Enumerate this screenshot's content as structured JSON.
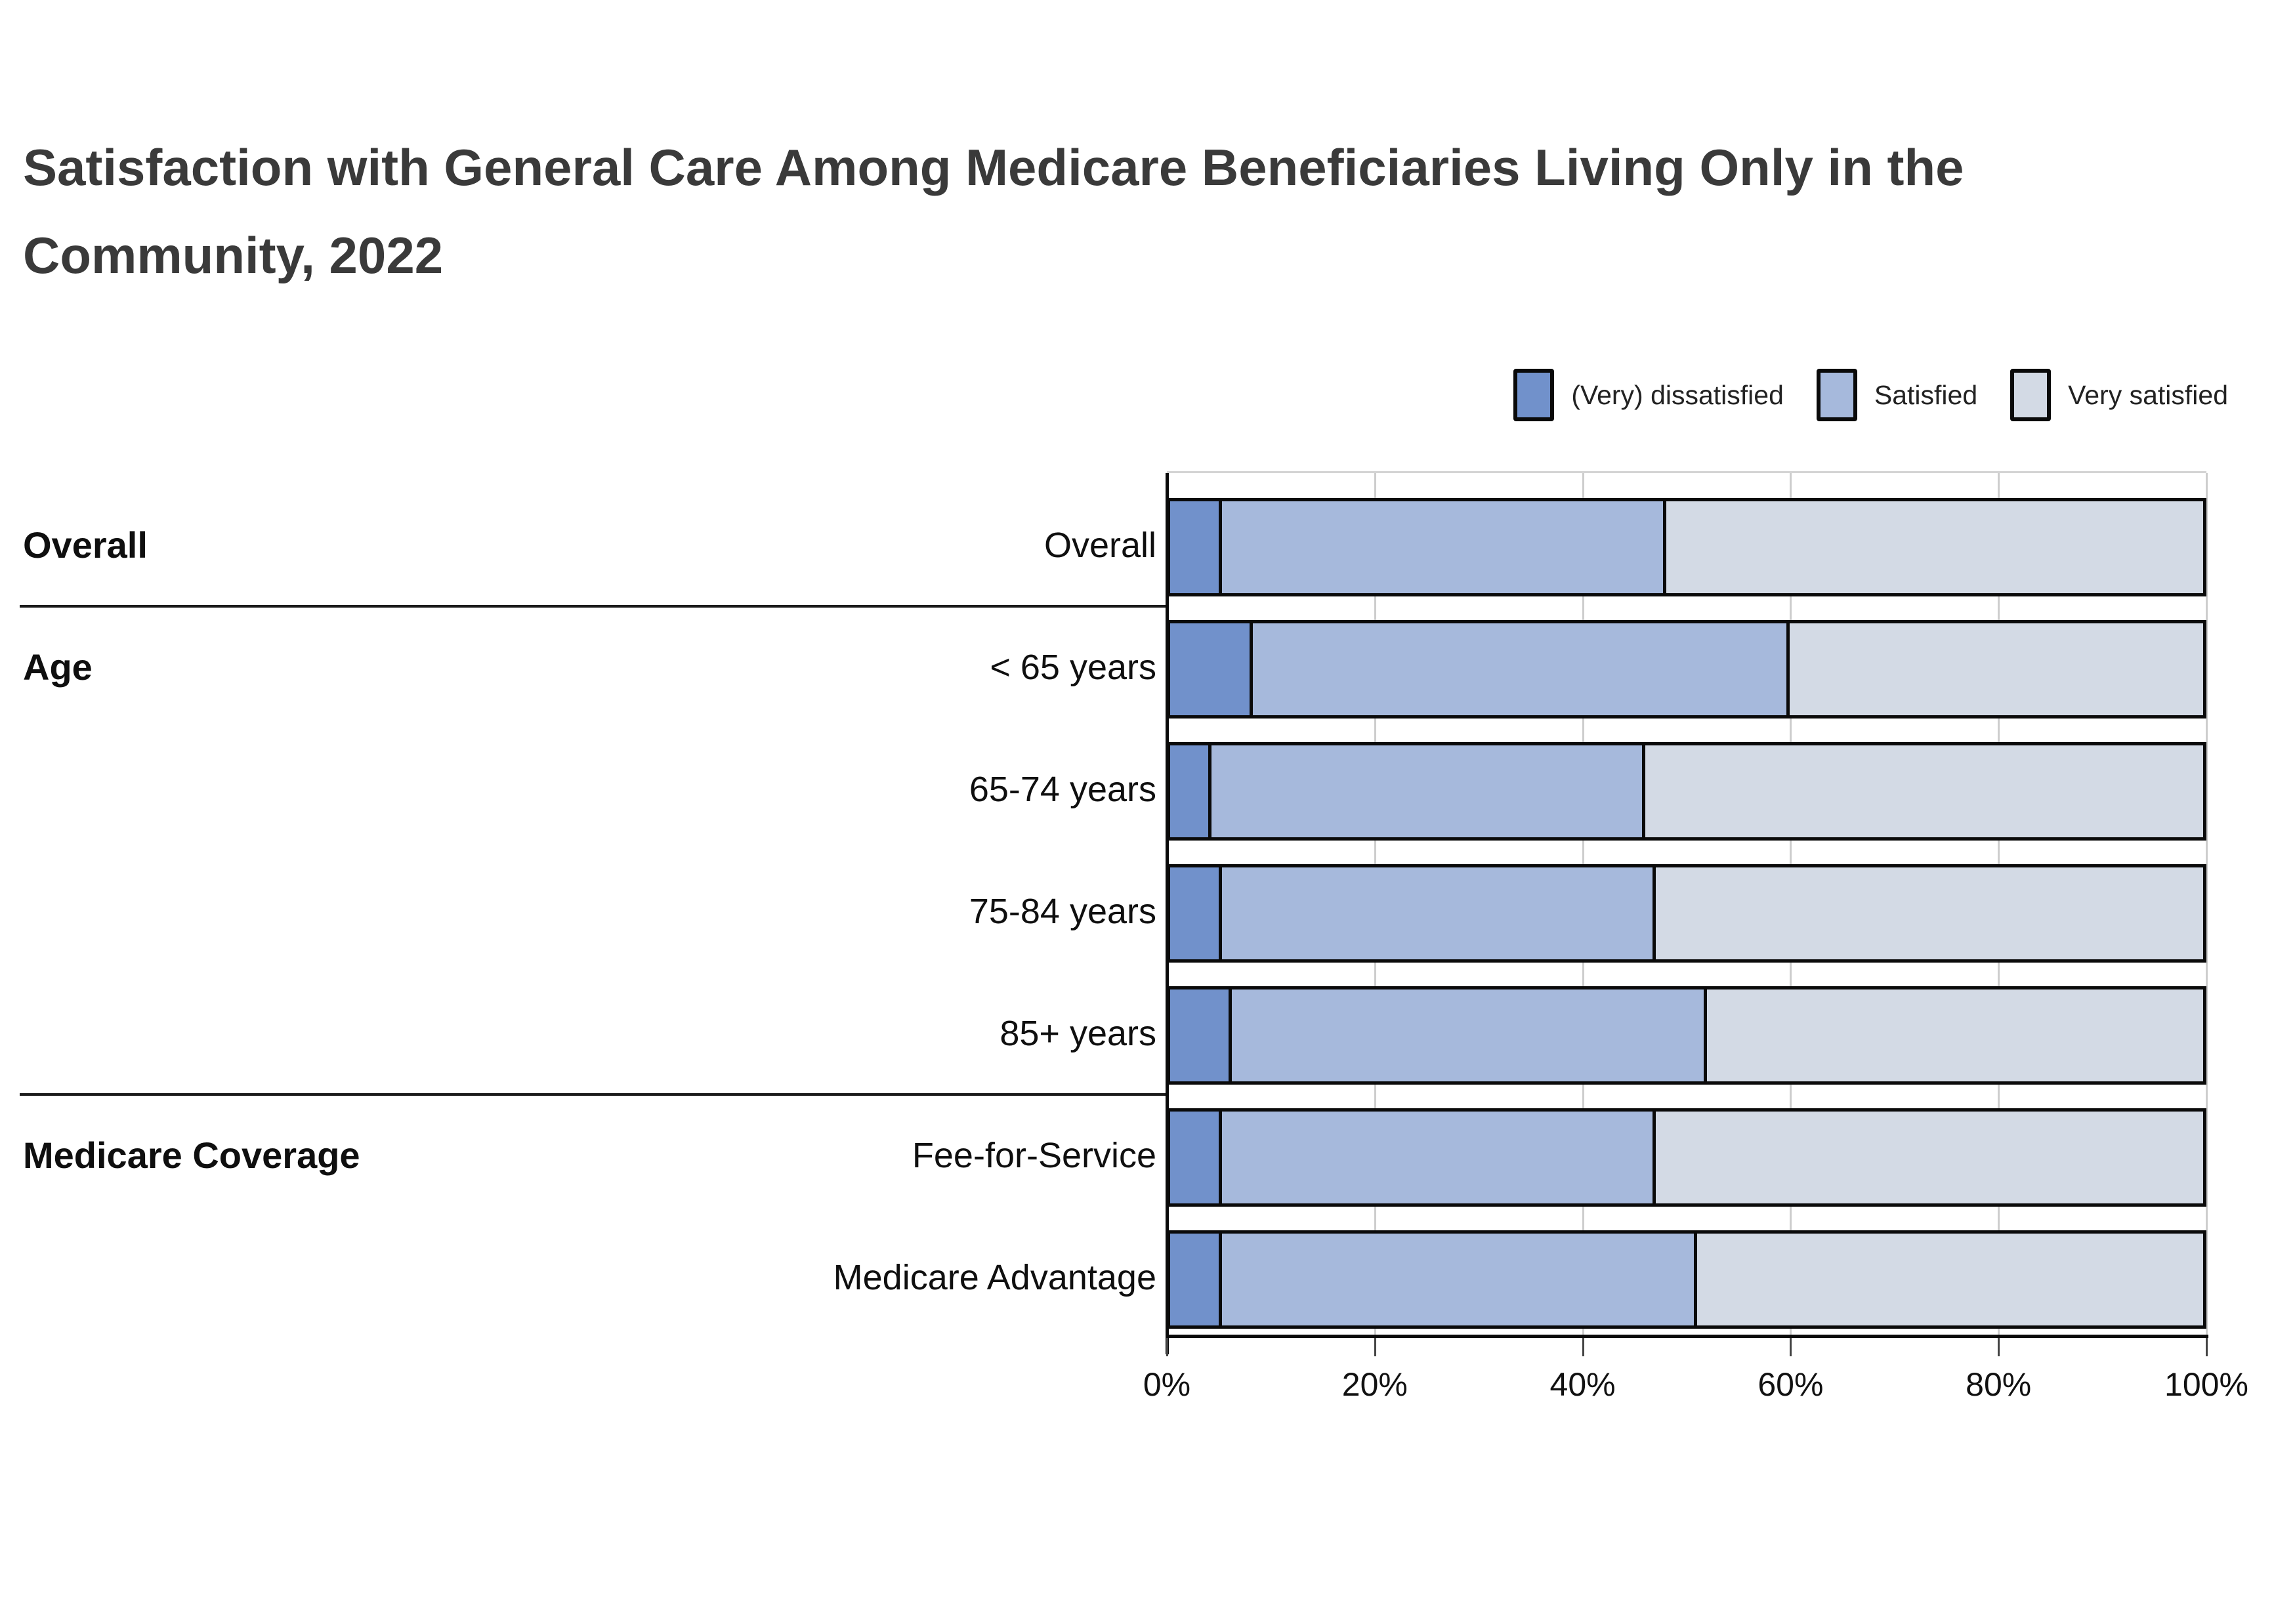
{
  "title": "Satisfaction with General Care Among Medicare Beneficiaries Living Only in the Community, 2022",
  "colors": {
    "dissatisfied": "#7191cb",
    "satisfied": "#a6b9dc",
    "very_satisfied": "#d3dae5",
    "bar_stroke": "#0a0a0a",
    "gridline": "#cdcdcd",
    "title_text": "#3a3a3a"
  },
  "chart_data": {
    "type": "bar",
    "orientation": "horizontal",
    "stacked": true,
    "unit": "percent",
    "title": "Satisfaction with General Care Among Medicare Beneficiaries Living Only in the Community, 2022",
    "legend_position": "top-right",
    "grid": true,
    "xlim": [
      0,
      100
    ],
    "x_ticks": [
      "0%",
      "20%",
      "40%",
      "60%",
      "80%",
      "100%"
    ],
    "series_names": [
      "(Very) dissatisfied",
      "Satisfied",
      "Very satisfied"
    ],
    "groups": [
      {
        "header": "Overall",
        "rows": [
          {
            "label": "Overall",
            "values": [
              5,
              43,
              52
            ]
          }
        ]
      },
      {
        "header": "Age",
        "rows": [
          {
            "label": "< 65 years",
            "values": [
              8,
              52,
              40
            ]
          },
          {
            "label": "65-74 years",
            "values": [
              4,
              42,
              54
            ]
          },
          {
            "label": "75-84 years",
            "values": [
              5,
              42,
              53
            ]
          },
          {
            "label": "85+ years",
            "values": [
              6,
              46,
              48
            ]
          }
        ]
      },
      {
        "header": "Medicare Coverage",
        "rows": [
          {
            "label": "Fee-for-Service",
            "values": [
              5,
              42,
              53
            ]
          },
          {
            "label": "Medicare Advantage",
            "values": [
              5,
              46,
              49
            ]
          }
        ]
      }
    ]
  }
}
